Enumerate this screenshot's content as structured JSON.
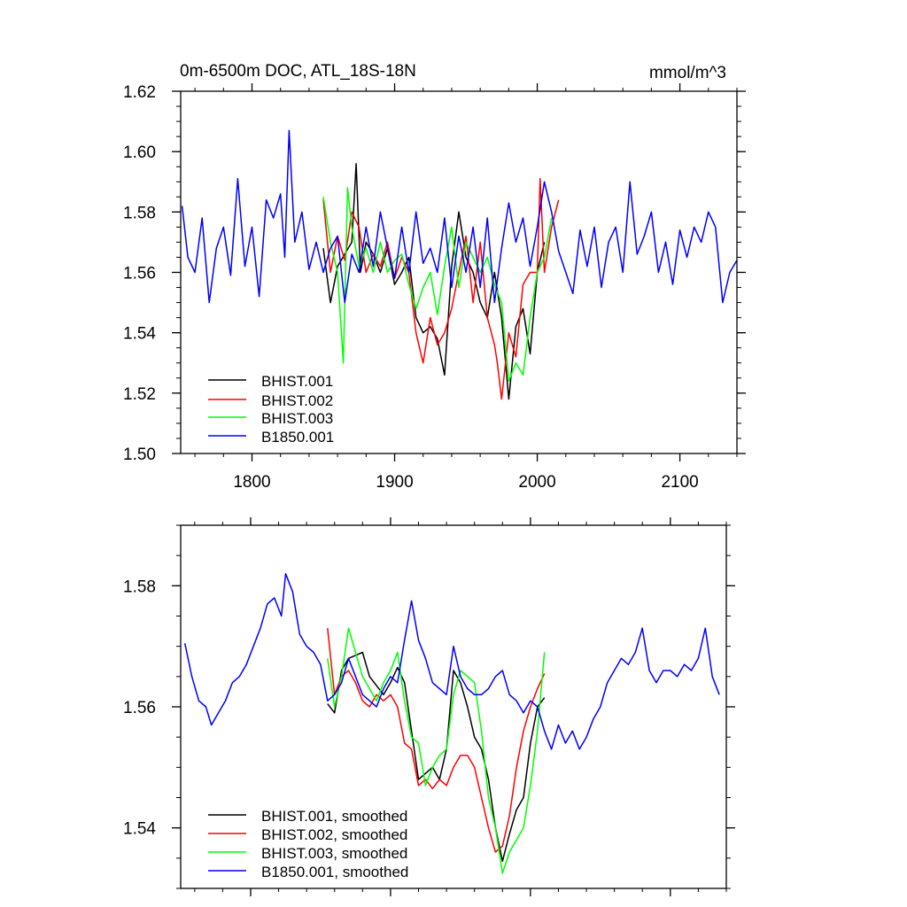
{
  "chart_data": [
    {
      "type": "line",
      "title": "0m-6500m DOC, ATL_18S-18N",
      "units": "mmol/m^3",
      "xlim": [
        1750,
        2140
      ],
      "ylim": [
        1.5,
        1.62
      ],
      "xticks": [
        1800,
        1900,
        2000,
        2100
      ],
      "xtick_labels": [
        "1800",
        "1900",
        "2000",
        "2100"
      ],
      "yticks": [
        1.5,
        1.52,
        1.54,
        1.56,
        1.58,
        1.6,
        1.62
      ],
      "ytick_labels": [
        "1.50",
        "1.52",
        "1.54",
        "1.56",
        "1.58",
        "1.60",
        "1.62"
      ],
      "legend_position": "bottom-left",
      "series": [
        {
          "name": "BHIST.001",
          "color": "#000000",
          "x": [
            1850,
            1855,
            1860,
            1865,
            1870,
            1873,
            1876,
            1880,
            1885,
            1890,
            1895,
            1900,
            1905,
            1910,
            1915,
            1920,
            1925,
            1930,
            1935,
            1940,
            1945,
            1950,
            1955,
            1960,
            1965,
            1970,
            1975,
            1980,
            1985,
            1990,
            1995,
            2000,
            2005
          ],
          "y": [
            1.568,
            1.55,
            1.562,
            1.566,
            1.57,
            1.596,
            1.56,
            1.57,
            1.566,
            1.56,
            1.568,
            1.556,
            1.56,
            1.565,
            1.545,
            1.54,
            1.542,
            1.538,
            1.526,
            1.562,
            1.58,
            1.565,
            1.56,
            1.55,
            1.545,
            1.56,
            1.545,
            1.518,
            1.542,
            1.548,
            1.533,
            1.56,
            1.57
          ]
        },
        {
          "name": "BHIST.002",
          "color": "#ff0000",
          "x": [
            1850,
            1855,
            1860,
            1865,
            1870,
            1875,
            1880,
            1885,
            1890,
            1895,
            1900,
            1905,
            1910,
            1915,
            1920,
            1925,
            1930,
            1935,
            1940,
            1945,
            1950,
            1955,
            1960,
            1965,
            1970,
            1972,
            1975,
            1980,
            1985,
            1990,
            1995,
            2000,
            2002,
            2005,
            2010,
            2015
          ],
          "y": [
            1.584,
            1.56,
            1.572,
            1.564,
            1.58,
            1.575,
            1.56,
            1.566,
            1.562,
            1.57,
            1.558,
            1.565,
            1.56,
            1.54,
            1.53,
            1.545,
            1.536,
            1.54,
            1.548,
            1.56,
            1.572,
            1.55,
            1.57,
            1.545,
            1.536,
            1.53,
            1.518,
            1.54,
            1.532,
            1.556,
            1.56,
            1.56,
            1.591,
            1.56,
            1.575,
            1.584
          ]
        },
        {
          "name": "BHIST.003",
          "color": "#00ff00",
          "x": [
            1850,
            1855,
            1860,
            1864,
            1867,
            1870,
            1875,
            1880,
            1885,
            1890,
            1895,
            1900,
            1905,
            1910,
            1915,
            1920,
            1925,
            1930,
            1935,
            1940,
            1945,
            1950,
            1955,
            1960,
            1965,
            1970,
            1975,
            1980,
            1985,
            1990,
            1995,
            2000,
            2005,
            2010
          ],
          "y": [
            1.585,
            1.57,
            1.56,
            1.53,
            1.588,
            1.575,
            1.562,
            1.568,
            1.56,
            1.57,
            1.56,
            1.564,
            1.566,
            1.556,
            1.548,
            1.555,
            1.56,
            1.546,
            1.562,
            1.575,
            1.555,
            1.57,
            1.565,
            1.56,
            1.565,
            1.556,
            1.55,
            1.524,
            1.53,
            1.526,
            1.545,
            1.56,
            1.565,
            1.578
          ]
        },
        {
          "name": "B1850.001",
          "color": "#0000ff",
          "x": [
            1751,
            1755,
            1760,
            1765,
            1770,
            1775,
            1780,
            1785,
            1790,
            1795,
            1800,
            1805,
            1810,
            1815,
            1820,
            1823,
            1826,
            1830,
            1835,
            1840,
            1845,
            1850,
            1855,
            1860,
            1865,
            1870,
            1875,
            1880,
            1885,
            1890,
            1895,
            1900,
            1905,
            1910,
            1915,
            1920,
            1925,
            1930,
            1935,
            1940,
            1945,
            1950,
            1955,
            1960,
            1965,
            1970,
            1975,
            1980,
            1985,
            1990,
            1995,
            2000,
            2005,
            2010,
            2015,
            2020,
            2025,
            2030,
            2035,
            2040,
            2045,
            2050,
            2055,
            2060,
            2065,
            2070,
            2075,
            2080,
            2085,
            2090,
            2095,
            2100,
            2105,
            2110,
            2115,
            2120,
            2125,
            2130,
            2135,
            2140
          ],
          "y": [
            1.582,
            1.565,
            1.56,
            1.578,
            1.55,
            1.568,
            1.575,
            1.559,
            1.591,
            1.562,
            1.575,
            1.552,
            1.584,
            1.578,
            1.586,
            1.565,
            1.607,
            1.57,
            1.58,
            1.561,
            1.57,
            1.56,
            1.568,
            1.572,
            1.55,
            1.566,
            1.56,
            1.575,
            1.562,
            1.58,
            1.568,
            1.558,
            1.575,
            1.56,
            1.58,
            1.563,
            1.568,
            1.56,
            1.578,
            1.555,
            1.572,
            1.56,
            1.575,
            1.555,
            1.578,
            1.55,
            1.568,
            1.583,
            1.57,
            1.578,
            1.562,
            1.575,
            1.59,
            1.58,
            1.567,
            1.56,
            1.553,
            1.574,
            1.562,
            1.575,
            1.555,
            1.57,
            1.575,
            1.56,
            1.59,
            1.566,
            1.572,
            1.58,
            1.56,
            1.57,
            1.556,
            1.574,
            1.565,
            1.575,
            1.57,
            1.58,
            1.575,
            1.55,
            1.56,
            1.564
          ]
        }
      ]
    },
    {
      "type": "line",
      "title": "",
      "xlim": [
        1750,
        2140
      ],
      "ylim": [
        1.53,
        1.59
      ],
      "xticks": [
        1800,
        1900,
        2000,
        2100
      ],
      "yticks": [
        1.54,
        1.56,
        1.58
      ],
      "ytick_labels": [
        "1.54",
        "1.56",
        "1.58"
      ],
      "legend_position": "bottom-left",
      "series": [
        {
          "name": "BHIST.001, smoothed",
          "color": "#000000",
          "x": [
            1855,
            1860,
            1865,
            1870,
            1875,
            1880,
            1885,
            1890,
            1895,
            1900,
            1905,
            1910,
            1915,
            1920,
            1925,
            1930,
            1935,
            1940,
            1945,
            1950,
            1955,
            1960,
            1965,
            1970,
            1975,
            1980,
            1985,
            1990,
            1995,
            2000,
            2005,
            2010
          ],
          "y": [
            1.5605,
            1.559,
            1.566,
            1.568,
            1.5685,
            1.569,
            1.565,
            1.5635,
            1.562,
            1.564,
            1.5665,
            1.564,
            1.556,
            1.548,
            1.549,
            1.55,
            1.548,
            1.553,
            1.566,
            1.564,
            1.56,
            1.555,
            1.553,
            1.548,
            1.54,
            1.5345,
            1.539,
            1.543,
            1.545,
            1.554,
            1.56,
            1.5615
          ]
        },
        {
          "name": "BHIST.002, smoothed",
          "color": "#ff0000",
          "x": [
            1855,
            1860,
            1865,
            1870,
            1875,
            1880,
            1885,
            1890,
            1895,
            1900,
            1905,
            1910,
            1915,
            1920,
            1925,
            1930,
            1935,
            1940,
            1945,
            1950,
            1955,
            1960,
            1965,
            1970,
            1975,
            1980,
            1985,
            1990,
            1995,
            2000,
            2005,
            2010
          ],
          "y": [
            1.573,
            1.562,
            1.565,
            1.566,
            1.564,
            1.561,
            1.56,
            1.562,
            1.561,
            1.562,
            1.56,
            1.554,
            1.553,
            1.547,
            1.548,
            1.5465,
            1.548,
            1.547,
            1.55,
            1.552,
            1.552,
            1.55,
            1.545,
            1.54,
            1.536,
            1.537,
            1.542,
            1.55,
            1.556,
            1.56,
            1.563,
            1.5655
          ]
        },
        {
          "name": "BHIST.003, smoothed",
          "color": "#00ff00",
          "x": [
            1855,
            1860,
            1865,
            1870,
            1875,
            1880,
            1885,
            1890,
            1895,
            1900,
            1905,
            1910,
            1915,
            1920,
            1925,
            1930,
            1935,
            1940,
            1945,
            1950,
            1955,
            1960,
            1965,
            1970,
            1975,
            1980,
            1985,
            1990,
            1995,
            2000,
            2005,
            2010
          ],
          "y": [
            1.568,
            1.56,
            1.565,
            1.573,
            1.569,
            1.565,
            1.563,
            1.561,
            1.564,
            1.566,
            1.569,
            1.561,
            1.555,
            1.554,
            1.547,
            1.55,
            1.552,
            1.553,
            1.562,
            1.566,
            1.565,
            1.564,
            1.556,
            1.545,
            1.54,
            1.5325,
            1.536,
            1.538,
            1.54,
            1.547,
            1.556,
            1.569
          ]
        },
        {
          "name": "B1850.001, smoothed",
          "color": "#0000ff",
          "x": [
            1753,
            1758,
            1763,
            1768,
            1772,
            1777,
            1782,
            1787,
            1792,
            1797,
            1802,
            1807,
            1812,
            1817,
            1822,
            1825,
            1830,
            1835,
            1840,
            1845,
            1850,
            1855,
            1860,
            1865,
            1870,
            1875,
            1880,
            1885,
            1890,
            1895,
            1900,
            1905,
            1910,
            1915,
            1920,
            1925,
            1930,
            1935,
            1940,
            1945,
            1950,
            1955,
            1960,
            1965,
            1970,
            1975,
            1980,
            1985,
            1990,
            1995,
            2000,
            2005,
            2010,
            2015,
            2020,
            2025,
            2030,
            2035,
            2040,
            2045,
            2050,
            2055,
            2060,
            2065,
            2070,
            2075,
            2080,
            2085,
            2090,
            2095,
            2100,
            2105,
            2110,
            2115,
            2120,
            2125,
            2130,
            2135
          ],
          "y": [
            1.5705,
            1.565,
            1.561,
            1.56,
            1.557,
            1.559,
            1.561,
            1.564,
            1.565,
            1.567,
            1.57,
            1.573,
            1.577,
            1.578,
            1.575,
            1.582,
            1.579,
            1.572,
            1.57,
            1.569,
            1.567,
            1.561,
            1.562,
            1.564,
            1.568,
            1.565,
            1.562,
            1.561,
            1.56,
            1.563,
            1.565,
            1.564,
            1.571,
            1.5775,
            1.571,
            1.568,
            1.564,
            1.563,
            1.562,
            1.57,
            1.565,
            1.563,
            1.562,
            1.562,
            1.563,
            1.565,
            1.566,
            1.562,
            1.561,
            1.559,
            1.561,
            1.56,
            1.556,
            1.553,
            1.557,
            1.554,
            1.556,
            1.553,
            1.555,
            1.558,
            1.56,
            1.564,
            1.566,
            1.568,
            1.567,
            1.569,
            1.573,
            1.566,
            1.564,
            1.566,
            1.566,
            1.565,
            1.567,
            1.566,
            1.568,
            1.573,
            1.565,
            1.562
          ]
        }
      ]
    }
  ]
}
